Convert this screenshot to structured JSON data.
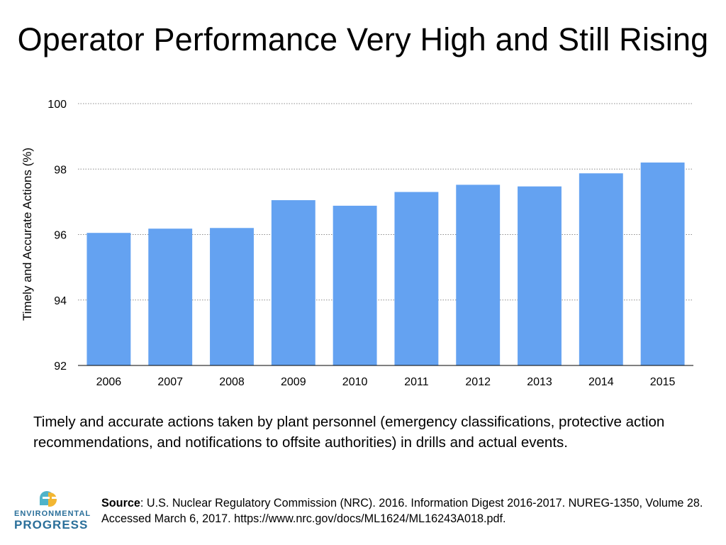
{
  "title": "Operator Performance Very High and Still Rising",
  "chart_data": {
    "type": "bar",
    "categories": [
      "2006",
      "2007",
      "2008",
      "2009",
      "2010",
      "2011",
      "2012",
      "2013",
      "2014",
      "2015"
    ],
    "values": [
      96.05,
      96.18,
      96.2,
      97.05,
      96.88,
      97.3,
      97.52,
      97.47,
      97.87,
      98.2
    ],
    "ylabel": "Timely and Accurate Actions (%)",
    "xlabel": "",
    "ylim": [
      92,
      100
    ],
    "yticks": [
      "92",
      "94",
      "96",
      "98",
      "100"
    ],
    "grid": true,
    "bar_color": "#64a2f1",
    "grid_color": "#8c8c8c"
  },
  "description": "Timely and accurate actions taken by plant personnel (emergency classifications, protective action recommendations, and notifications to offsite authorities) in drills and actual events.",
  "logo": {
    "line1": "ENVIRONMENTAL",
    "line2": "PROGRESS",
    "icon": "ep-logo-icon",
    "colors": {
      "blue": "#2a6f9a",
      "yellow": "#f2b632",
      "teal": "#4fb3c9"
    }
  },
  "source": {
    "label": "Source",
    "text": ": U.S. Nuclear Regulatory Commission (NRC). 2016. Information Digest 2016-2017. NUREG-1350, Volume 28. Accessed March 6, 2017. https://www.nrc.gov/docs/ML1624/ML16243A018.pdf."
  }
}
